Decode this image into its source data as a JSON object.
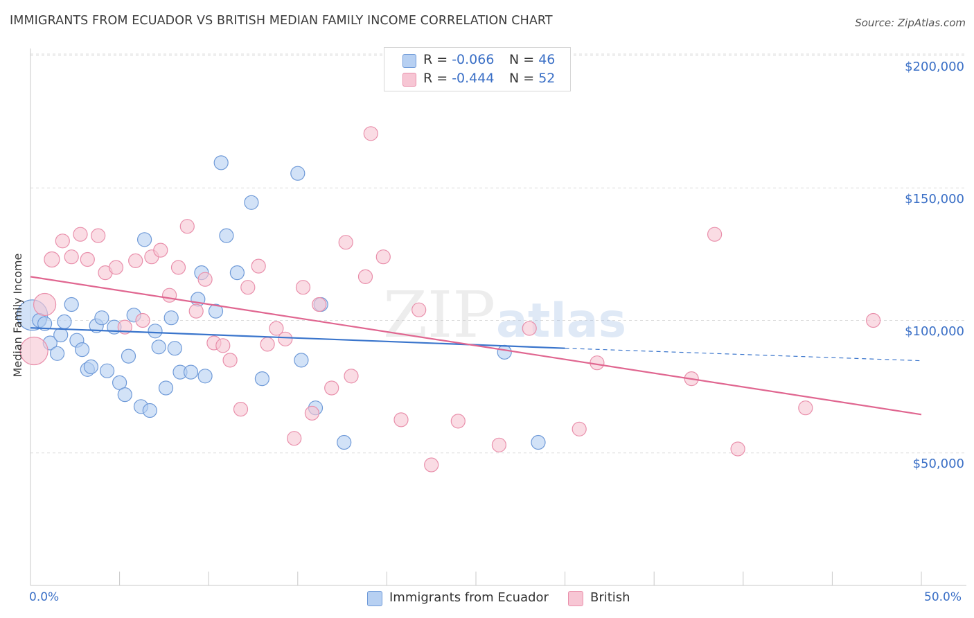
{
  "header": {
    "title": "IMMIGRANTS FROM ECUADOR VS BRITISH MEDIAN FAMILY INCOME CORRELATION CHART",
    "source": "Source: ZipAtlas.com"
  },
  "watermark": {
    "part1": "ZIP",
    "part2": "atlas"
  },
  "legend_top": [
    {
      "r_label": "R = ",
      "r_value": "-0.066",
      "n_label": "N = ",
      "n_value": "46"
    },
    {
      "r_label": "R = ",
      "r_value": "-0.444",
      "n_label": "N = ",
      "n_value": "52"
    }
  ],
  "legend_bottom": [
    {
      "label": "Immigrants from Ecuador"
    },
    {
      "label": "British"
    }
  ],
  "colors": {
    "blue_fill": "#b7d0f2",
    "blue_stroke": "#6f9ad8",
    "blue_line": "#3a75cc",
    "pink_fill": "#f7c6d4",
    "pink_stroke": "#e98fab",
    "pink_line": "#e06690",
    "axis_text": "#3a6fc6",
    "grid": "#dcdcdc"
  },
  "chart_data": {
    "type": "scatter",
    "title": "IMMIGRANTS FROM ECUADOR VS BRITISH MEDIAN FAMILY INCOME CORRELATION CHART",
    "xlabel": "",
    "ylabel": "Median Family Income",
    "xlim": [
      0,
      50
    ],
    "ylim": [
      0,
      205000
    ],
    "x_tick_labels": [
      "0.0%",
      "50.0%"
    ],
    "y_ticks": [
      50000,
      100000,
      150000,
      200000
    ],
    "y_tick_labels": [
      "$50,000",
      "$100,000",
      "$150,000",
      "$200,000"
    ],
    "grid": true,
    "legend_placement": "top-center",
    "series": [
      {
        "name": "Immigrants from Ecuador",
        "color": "#6f9ad8",
        "trend": {
          "x": [
            0,
            30
          ],
          "y": [
            97200,
            89500
          ],
          "dashed_to": [
            50,
            84800
          ]
        },
        "points": [
          [
            0.1,
            102000,
            22
          ],
          [
            0.5,
            100000,
            10
          ],
          [
            0.8,
            98800,
            10
          ],
          [
            1.1,
            91500,
            10
          ],
          [
            1.5,
            87500,
            10
          ],
          [
            1.7,
            94500,
            10
          ],
          [
            1.9,
            99500,
            10
          ],
          [
            2.3,
            106000,
            10
          ],
          [
            2.6,
            92500,
            10
          ],
          [
            2.9,
            89000,
            10
          ],
          [
            3.2,
            81500,
            10
          ],
          [
            3.4,
            82500,
            10
          ],
          [
            3.7,
            98000,
            10
          ],
          [
            4.0,
            101000,
            10
          ],
          [
            4.3,
            81000,
            10
          ],
          [
            4.7,
            97500,
            10
          ],
          [
            5.0,
            76500,
            10
          ],
          [
            5.3,
            72000,
            10
          ],
          [
            5.5,
            86500,
            10
          ],
          [
            5.8,
            102000,
            10
          ],
          [
            6.2,
            67500,
            10
          ],
          [
            6.4,
            130500,
            10
          ],
          [
            6.7,
            66000,
            10
          ],
          [
            7.0,
            96000,
            10
          ],
          [
            7.2,
            90000,
            10
          ],
          [
            7.6,
            74500,
            10
          ],
          [
            7.9,
            101000,
            10
          ],
          [
            8.1,
            89500,
            10
          ],
          [
            8.4,
            80500,
            10
          ],
          [
            9.0,
            80500,
            10
          ],
          [
            9.4,
            108000,
            10
          ],
          [
            9.6,
            118000,
            10
          ],
          [
            9.8,
            79000,
            10
          ],
          [
            10.4,
            103500,
            10
          ],
          [
            10.7,
            159500,
            10
          ],
          [
            11.0,
            132000,
            10
          ],
          [
            11.6,
            118000,
            10
          ],
          [
            12.4,
            144500,
            10
          ],
          [
            13.0,
            78000,
            10
          ],
          [
            15.0,
            155500,
            10
          ],
          [
            15.2,
            85000,
            10
          ],
          [
            16.0,
            67000,
            10
          ],
          [
            16.3,
            106000,
            10
          ],
          [
            17.6,
            54000,
            10
          ],
          [
            26.6,
            88000,
            10
          ],
          [
            28.5,
            54000,
            10
          ]
        ]
      },
      {
        "name": "British",
        "color": "#e98fab",
        "trend": {
          "x": [
            0,
            50
          ],
          "y": [
            116500,
            64500
          ]
        },
        "points": [
          [
            0.2,
            88500,
            20
          ],
          [
            0.8,
            106000,
            16
          ],
          [
            1.2,
            123000,
            11
          ],
          [
            1.8,
            130000,
            10
          ],
          [
            2.3,
            124000,
            10
          ],
          [
            2.8,
            132500,
            10
          ],
          [
            3.2,
            123000,
            10
          ],
          [
            3.8,
            132000,
            10
          ],
          [
            4.2,
            118000,
            10
          ],
          [
            4.8,
            120000,
            10
          ],
          [
            5.3,
            97500,
            10
          ],
          [
            5.9,
            122500,
            10
          ],
          [
            6.3,
            100000,
            10
          ],
          [
            6.8,
            124000,
            10
          ],
          [
            7.3,
            126500,
            10
          ],
          [
            7.8,
            109500,
            10
          ],
          [
            8.3,
            120000,
            10
          ],
          [
            8.8,
            135500,
            10
          ],
          [
            9.3,
            103500,
            10
          ],
          [
            9.8,
            115500,
            10
          ],
          [
            10.3,
            91500,
            10
          ],
          [
            10.8,
            90500,
            10
          ],
          [
            11.2,
            85000,
            10
          ],
          [
            11.8,
            66500,
            10
          ],
          [
            12.2,
            112500,
            10
          ],
          [
            12.8,
            120500,
            10
          ],
          [
            13.3,
            91000,
            10
          ],
          [
            13.8,
            97000,
            10
          ],
          [
            14.3,
            93000,
            10
          ],
          [
            14.8,
            55500,
            10
          ],
          [
            15.3,
            112500,
            10
          ],
          [
            15.8,
            65000,
            10
          ],
          [
            16.2,
            106000,
            10
          ],
          [
            16.9,
            74500,
            10
          ],
          [
            17.7,
            129500,
            10
          ],
          [
            18.0,
            79000,
            10
          ],
          [
            18.8,
            116500,
            10
          ],
          [
            19.1,
            170500,
            10
          ],
          [
            19.8,
            124000,
            10
          ],
          [
            20.8,
            62500,
            10
          ],
          [
            21.8,
            104000,
            10
          ],
          [
            22.5,
            45500,
            10
          ],
          [
            24.0,
            62000,
            10
          ],
          [
            26.3,
            53000,
            10
          ],
          [
            28.0,
            97000,
            10
          ],
          [
            30.8,
            59000,
            10
          ],
          [
            31.8,
            84000,
            10
          ],
          [
            37.1,
            78000,
            10
          ],
          [
            38.4,
            132500,
            10
          ],
          [
            39.7,
            51500,
            10
          ],
          [
            43.5,
            67000,
            10
          ],
          [
            47.3,
            100000,
            10
          ]
        ]
      }
    ]
  }
}
